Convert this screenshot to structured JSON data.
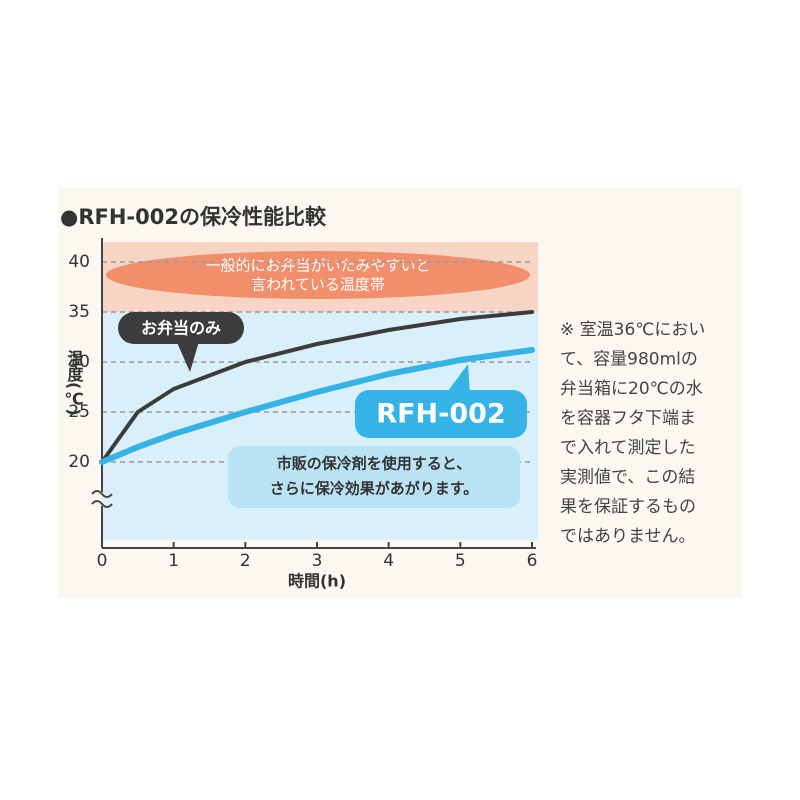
{
  "chart_data": {
    "type": "line",
    "title": "●RFH-002の保冷性能比較",
    "x": [
      0,
      0.5,
      1,
      2,
      3,
      4,
      5,
      6
    ],
    "series": [
      {
        "name": "お弁当のみ",
        "color": "#3c3c3c",
        "values": [
          20,
          25,
          27.3,
          30,
          31.8,
          33.2,
          34.3,
          35
        ]
      },
      {
        "name": "RFH-002",
        "color": "#35b3e6",
        "values": [
          20,
          21.5,
          22.8,
          25,
          27,
          28.8,
          30.2,
          31.2
        ]
      }
    ],
    "xlim": [
      0,
      6
    ],
    "ylim": [
      20,
      42
    ],
    "xticks": [
      0,
      1,
      2,
      3,
      4,
      5,
      6
    ],
    "yticks": [
      20,
      25,
      30,
      35,
      40
    ],
    "xlabel": "時間(h)",
    "ylabel": "温度(℃)",
    "grid": true,
    "band": {
      "from": 35,
      "to": 42,
      "label": [
        "一般的にお弁当がいたみやすいと",
        "言われている温度帯"
      ]
    },
    "annotation": [
      "市販の保冷剤を使用すると、",
      "さらに保冷効果があがります。"
    ]
  },
  "footnote": [
    "※ 室温36℃におい",
    "て、容量980mlの",
    "弁当箱に20℃の水",
    "を容器フタ下端ま",
    "で入れて測定した",
    "実測値で、この結",
    "果を保証するもの",
    "ではありません。"
  ]
}
